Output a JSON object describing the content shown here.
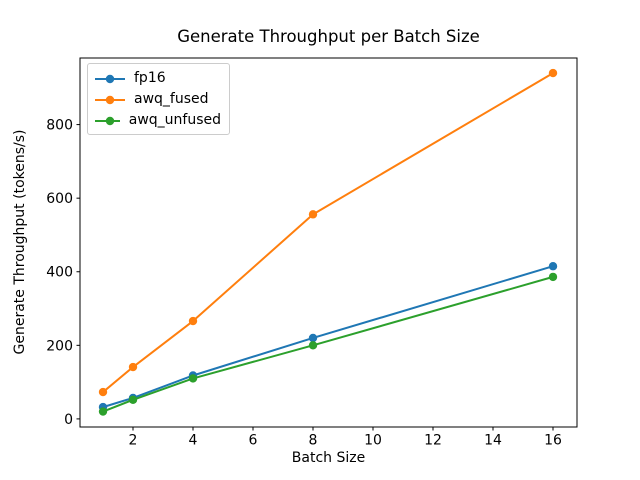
{
  "chart_data": {
    "type": "line",
    "title": "Generate Throughput per Batch Size",
    "xlabel": "Batch Size",
    "ylabel": "Generate Throughput (tokens/s)",
    "x": [
      1,
      2,
      4,
      8,
      16
    ],
    "series": [
      {
        "name": "fp16",
        "color": "#1f77b4",
        "values": [
          32,
          57,
          118,
          220,
          415
        ]
      },
      {
        "name": "awq_fused",
        "color": "#ff7f0e",
        "values": [
          73,
          141,
          266,
          556,
          940
        ]
      },
      {
        "name": "awq_unfused",
        "color": "#2ca02c",
        "values": [
          20,
          52,
          110,
          200,
          386
        ]
      }
    ],
    "xticks": [
      2,
      4,
      6,
      8,
      10,
      12,
      14,
      16
    ],
    "yticks": [
      0,
      200,
      400,
      600,
      800
    ],
    "xlim": [
      0.233,
      16.8
    ],
    "ylim": [
      -22,
      981
    ],
    "legend": {
      "position": "upper left",
      "entries": [
        "fp16",
        "awq_fused",
        "awq_unfused"
      ]
    },
    "grid": false,
    "marker": "o",
    "axis_color": "#000000",
    "background_color": "#ffffff"
  }
}
